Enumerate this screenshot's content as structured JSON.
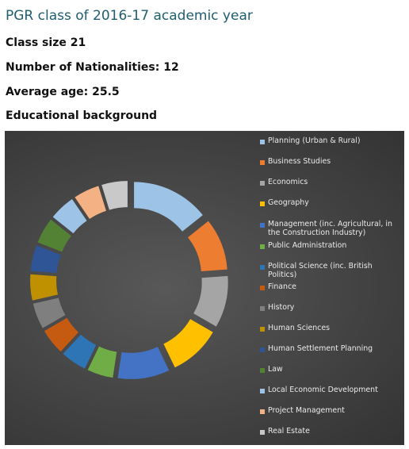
{
  "page": {
    "title": "PGR class of 2016-17 academic year",
    "stats": [
      "Class size 21",
      "Number of Nationalities: 12",
      "Average age: 25.5"
    ],
    "section_heading": "Educational background"
  },
  "chart_data": {
    "type": "pie",
    "variant": "exploded-donut",
    "legend_position": "right",
    "categories": [
      "Planning (Urban & Rural)",
      "Business Studies",
      "Economics",
      "Geography",
      "Management (inc. Agricultural, in the Construction Industry)",
      "Public Administration",
      "Political Science (inc. British Politics)",
      "Finance",
      "History",
      "Human Sciences",
      "Human Settlement Planning",
      "Law",
      "Local Economic Development",
      "Project Management",
      "Real Estate"
    ],
    "values": [
      3,
      2,
      2,
      2,
      2,
      1,
      1,
      1,
      1,
      1,
      1,
      1,
      1,
      1,
      1
    ],
    "colors": [
      "#9dc3e6",
      "#ed7d31",
      "#a5a5a5",
      "#ffc000",
      "#4472c4",
      "#70ad47",
      "#2e75b6",
      "#c55a11",
      "#7f7f7f",
      "#bf9000",
      "#2f5597",
      "#548235",
      "#9dc3e6",
      "#f4b183",
      "#c9c9c9"
    ]
  }
}
